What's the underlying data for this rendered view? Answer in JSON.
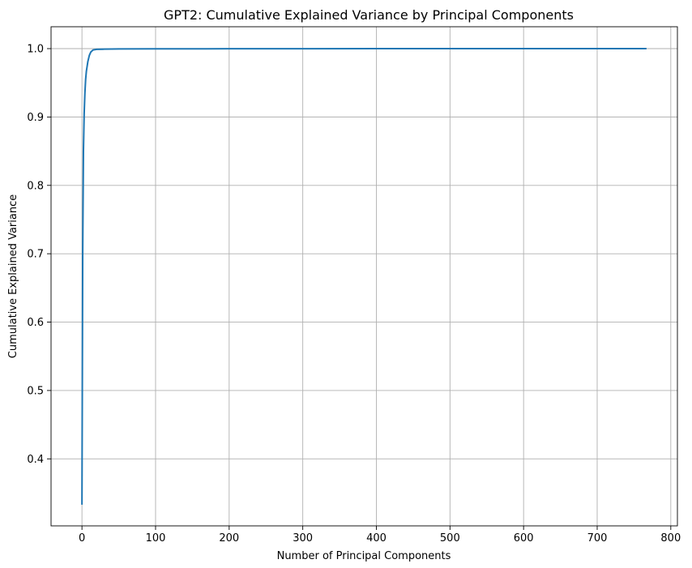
{
  "chart_data": {
    "type": "line",
    "title": "GPT2: Cumulative Explained Variance by Principal Components",
    "xlabel": "Number of Principal Components",
    "ylabel": "Cumulative Explained Variance",
    "xlim": [
      -42,
      809
    ],
    "ylim": [
      0.302,
      1.032
    ],
    "xticks": [
      0,
      100,
      200,
      300,
      400,
      500,
      600,
      700,
      800
    ],
    "xtick_labels": [
      "0",
      "100",
      "200",
      "300",
      "400",
      "500",
      "600",
      "700",
      "800"
    ],
    "yticks": [
      0.4,
      0.5,
      0.6,
      0.7,
      0.8,
      0.9,
      1.0
    ],
    "ytick_labels": [
      "0.4",
      "0.5",
      "0.6",
      "0.7",
      "0.8",
      "0.9",
      "1.0"
    ],
    "grid": true,
    "series": [
      {
        "color": "#1f77b4",
        "x": [
          0,
          1,
          2,
          3,
          4,
          5,
          6,
          8,
          10,
          12,
          15,
          20,
          30,
          50,
          100,
          200,
          300,
          400,
          500,
          600,
          700,
          767
        ],
        "y": [
          0.333,
          0.7,
          0.85,
          0.905,
          0.935,
          0.955,
          0.967,
          0.981,
          0.99,
          0.995,
          0.998,
          0.999,
          0.9992,
          0.9995,
          0.9997,
          0.9998,
          0.9999,
          0.99995,
          0.99998,
          0.99999,
          1.0,
          1.0
        ]
      }
    ]
  }
}
